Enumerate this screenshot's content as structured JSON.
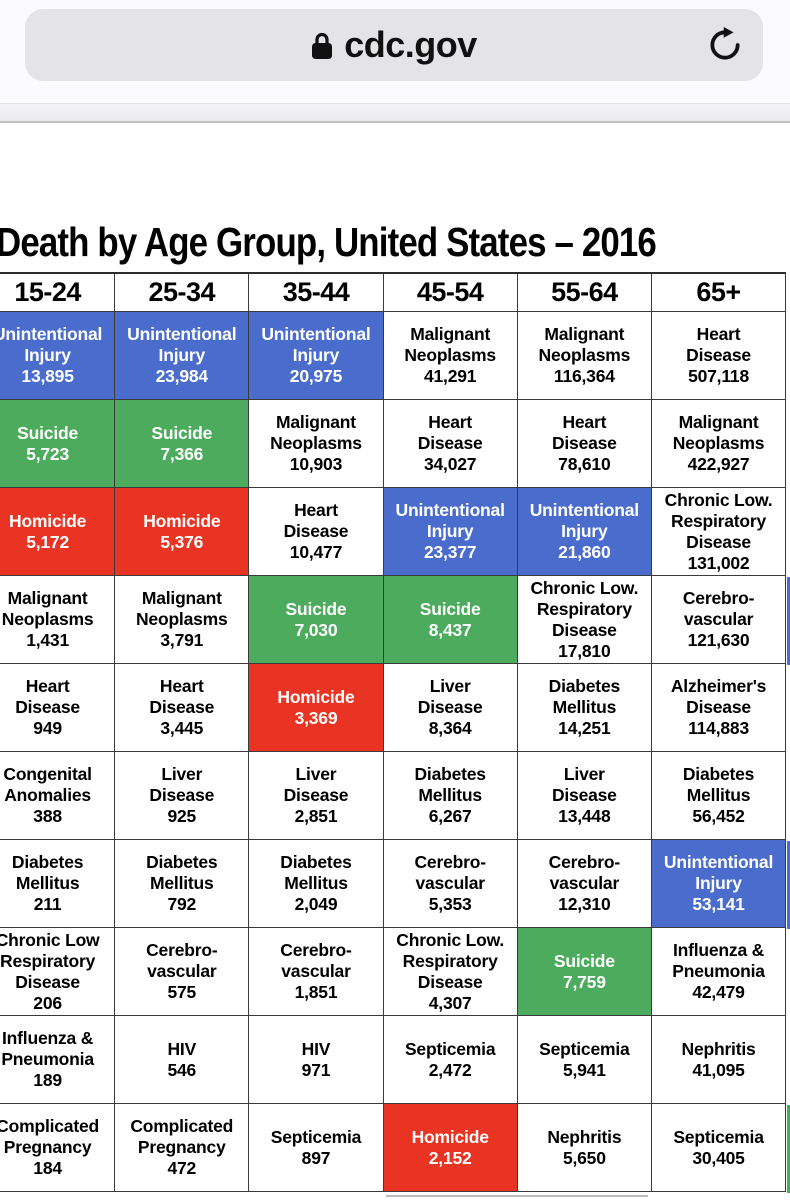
{
  "browser": {
    "url": "cdc.gov",
    "reload_label": "reload"
  },
  "page": {
    "title": "Death by Age Group, United States – 2016"
  },
  "colors": {
    "blue": "#4a6ccd",
    "green": "#4dab5d",
    "red": "#e93423",
    "white": "#ffffff"
  },
  "table": {
    "columns": [
      "15-24",
      "25-34",
      "35-44",
      "45-54",
      "55-64",
      "65+"
    ],
    "rows": [
      {
        "cells": [
          {
            "cause": "Unintentional\nInjury",
            "count": "13,895",
            "color": "blue"
          },
          {
            "cause": "Unintentional\nInjury",
            "count": "23,984",
            "color": "blue"
          },
          {
            "cause": "Unintentional\nInjury",
            "count": "20,975",
            "color": "blue"
          },
          {
            "cause": "Malignant\nNeoplasms",
            "count": "41,291",
            "color": "white"
          },
          {
            "cause": "Malignant\nNeoplasms",
            "count": "116,364",
            "color": "white"
          },
          {
            "cause": "Heart\nDisease",
            "count": "507,118",
            "color": "white"
          }
        ]
      },
      {
        "cells": [
          {
            "cause": "Suicide",
            "count": "5,723",
            "color": "green"
          },
          {
            "cause": "Suicide",
            "count": "7,366",
            "color": "green"
          },
          {
            "cause": "Malignant\nNeoplasms",
            "count": "10,903",
            "color": "white"
          },
          {
            "cause": "Heart\nDisease",
            "count": "34,027",
            "color": "white"
          },
          {
            "cause": "Heart\nDisease",
            "count": "78,610",
            "color": "white"
          },
          {
            "cause": "Malignant\nNeoplasms",
            "count": "422,927",
            "color": "white"
          }
        ]
      },
      {
        "cells": [
          {
            "cause": "Homicide",
            "count": "5,172",
            "color": "red"
          },
          {
            "cause": "Homicide",
            "count": "5,376",
            "color": "red"
          },
          {
            "cause": "Heart\nDisease",
            "count": "10,477",
            "color": "white"
          },
          {
            "cause": "Unintentional\nInjury",
            "count": "23,377",
            "color": "blue"
          },
          {
            "cause": "Unintentional\nInjury",
            "count": "21,860",
            "color": "blue"
          },
          {
            "cause": "Chronic Low.\nRespiratory\nDisease",
            "count": "131,002",
            "color": "white"
          }
        ]
      },
      {
        "cells": [
          {
            "cause": "Malignant\nNeoplasms",
            "count": "1,431",
            "color": "white"
          },
          {
            "cause": "Malignant\nNeoplasms",
            "count": "3,791",
            "color": "white"
          },
          {
            "cause": "Suicide",
            "count": "7,030",
            "color": "green"
          },
          {
            "cause": "Suicide",
            "count": "8,437",
            "color": "green"
          },
          {
            "cause": "Chronic Low.\nRespiratory\nDisease",
            "count": "17,810",
            "color": "white"
          },
          {
            "cause": "Cerebro-\nvascular",
            "count": "121,630",
            "color": "white"
          }
        ]
      },
      {
        "cells": [
          {
            "cause": "Heart\nDisease",
            "count": "949",
            "color": "white"
          },
          {
            "cause": "Heart\nDisease",
            "count": "3,445",
            "color": "white"
          },
          {
            "cause": "Homicide",
            "count": "3,369",
            "color": "red"
          },
          {
            "cause": "Liver\nDisease",
            "count": "8,364",
            "color": "white"
          },
          {
            "cause": "Diabetes\nMellitus",
            "count": "14,251",
            "color": "white"
          },
          {
            "cause": "Alzheimer's\nDisease",
            "count": "114,883",
            "color": "white"
          }
        ]
      },
      {
        "cells": [
          {
            "cause": "Congenital\nAnomalies",
            "count": "388",
            "color": "white"
          },
          {
            "cause": "Liver\nDisease",
            "count": "925",
            "color": "white"
          },
          {
            "cause": "Liver\nDisease",
            "count": "2,851",
            "color": "white"
          },
          {
            "cause": "Diabetes\nMellitus",
            "count": "6,267",
            "color": "white"
          },
          {
            "cause": "Liver\nDisease",
            "count": "13,448",
            "color": "white"
          },
          {
            "cause": "Diabetes\nMellitus",
            "count": "56,452",
            "color": "white"
          }
        ]
      },
      {
        "cells": [
          {
            "cause": "Diabetes\nMellitus",
            "count": "211",
            "color": "white"
          },
          {
            "cause": "Diabetes\nMellitus",
            "count": "792",
            "color": "white"
          },
          {
            "cause": "Diabetes\nMellitus",
            "count": "2,049",
            "color": "white"
          },
          {
            "cause": "Cerebro-\nvascular",
            "count": "5,353",
            "color": "white"
          },
          {
            "cause": "Cerebro-\nvascular",
            "count": "12,310",
            "color": "white"
          },
          {
            "cause": "Unintentional\nInjury",
            "count": "53,141",
            "color": "blue"
          }
        ]
      },
      {
        "cells": [
          {
            "cause": "Chronic Low\nRespiratory\nDisease",
            "count": "206",
            "color": "white"
          },
          {
            "cause": "Cerebro-\nvascular",
            "count": "575",
            "color": "white"
          },
          {
            "cause": "Cerebro-\nvascular",
            "count": "1,851",
            "color": "white"
          },
          {
            "cause": "Chronic Low.\nRespiratory\nDisease",
            "count": "4,307",
            "color": "white"
          },
          {
            "cause": "Suicide",
            "count": "7,759",
            "color": "green"
          },
          {
            "cause": "Influenza &\nPneumonia",
            "count": "42,479",
            "color": "white"
          }
        ]
      },
      {
        "cells": [
          {
            "cause": "Influenza &\nPneumonia",
            "count": "189",
            "color": "white"
          },
          {
            "cause": "HIV",
            "count": "546",
            "color": "white"
          },
          {
            "cause": "HIV",
            "count": "971",
            "color": "white"
          },
          {
            "cause": "Septicemia",
            "count": "2,472",
            "color": "white"
          },
          {
            "cause": "Septicemia",
            "count": "5,941",
            "color": "white"
          },
          {
            "cause": "Nephritis",
            "count": "41,095",
            "color": "white"
          }
        ]
      },
      {
        "cells": [
          {
            "cause": "Complicated\nPregnancy",
            "count": "184",
            "color": "white"
          },
          {
            "cause": "Complicated\nPregnancy",
            "count": "472",
            "color": "white"
          },
          {
            "cause": "Septicemia",
            "count": "897",
            "color": "white"
          },
          {
            "cause": "Homicide",
            "count": "2,152",
            "color": "red"
          },
          {
            "cause": "Nephritis",
            "count": "5,650",
            "color": "white"
          },
          {
            "cause": "Septicemia",
            "count": "30,405",
            "color": "white"
          }
        ]
      }
    ]
  },
  "right_edge_partial_column": {
    "segments": [
      "white",
      "white",
      "white",
      "white",
      "blue",
      "white",
      "white",
      "blue",
      "white",
      "white",
      "green"
    ],
    "segment_heights": [
      38,
      88,
      88,
      88,
      88,
      88,
      88,
      88,
      88,
      88,
      88
    ]
  }
}
